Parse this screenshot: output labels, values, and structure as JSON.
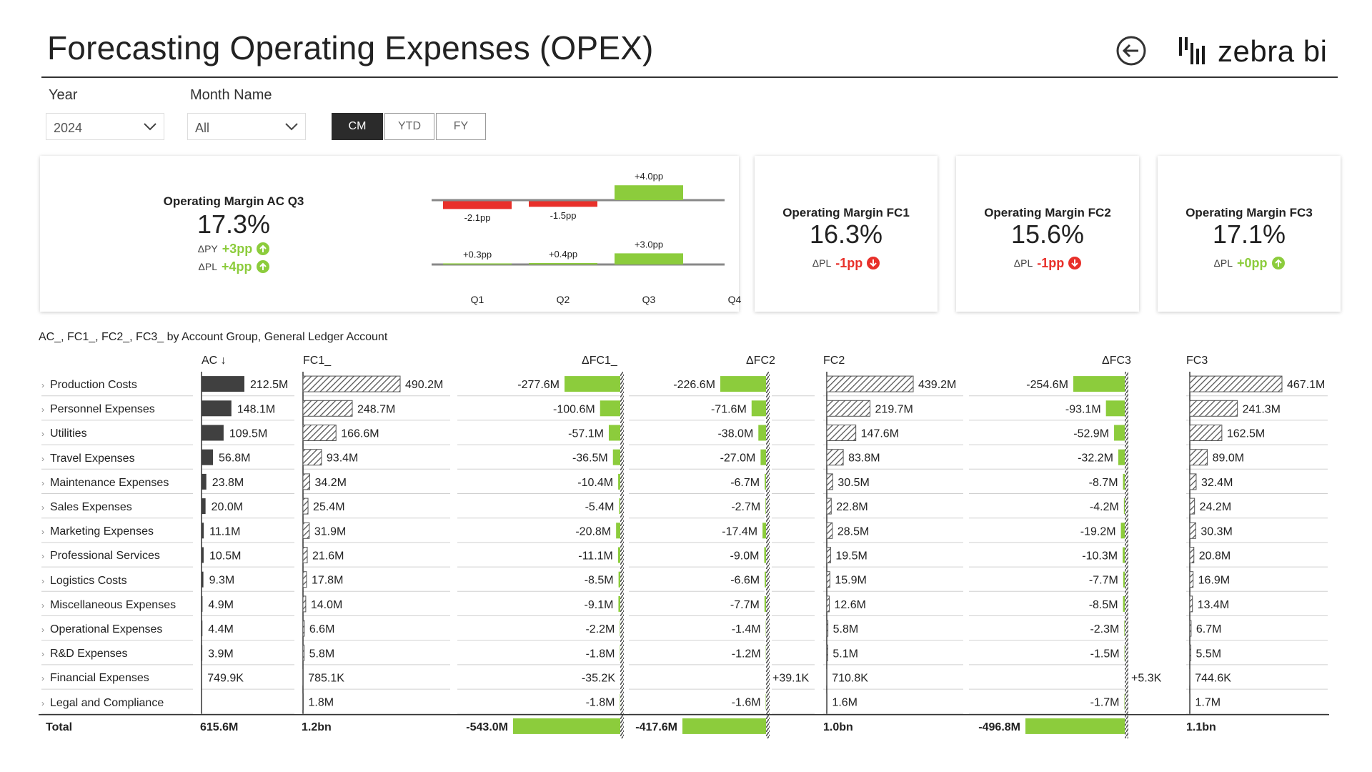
{
  "header": {
    "title": "Forecasting Operating Expenses (OPEX)",
    "logo_text": "zebra bi",
    "back_icon": "back-arrow-icon"
  },
  "filters": {
    "year_label": "Year",
    "year_value": "2024",
    "month_label": "Month Name",
    "month_value": "All",
    "period_buttons": [
      "CM",
      "YTD",
      "FY"
    ],
    "period_active": "CM"
  },
  "kpi_main": {
    "title": "Operating Margin AC Q3",
    "value": "17.3%",
    "delta_py_label": "ΔPY",
    "delta_py_value": "+3pp",
    "delta_pl_label": "ΔPL",
    "delta_pl_value": "+4pp",
    "mini_chart": {
      "quarters": [
        "Q1",
        "Q2",
        "Q3",
        "Q4"
      ],
      "py_deltas": [
        -2.1,
        -1.5,
        4.0,
        null
      ],
      "py_labels": [
        "-2.1pp",
        "-1.5pp",
        "+4.0pp",
        ""
      ],
      "pl_deltas": [
        0.3,
        0.4,
        3.0,
        null
      ],
      "pl_labels": [
        "+0.3pp",
        "+0.4pp",
        "+3.0pp",
        ""
      ]
    }
  },
  "kpi_forecasts": [
    {
      "title": "Operating Margin FC1",
      "value": "16.3%",
      "delta_label": "ΔPL",
      "delta_value": "-1pp",
      "status": "down"
    },
    {
      "title": "Operating Margin FC2",
      "value": "15.6%",
      "delta_label": "ΔPL",
      "delta_value": "-1pp",
      "status": "down"
    },
    {
      "title": "Operating Margin FC3",
      "value": "17.1%",
      "delta_label": "ΔPL",
      "delta_value": "+0pp",
      "status": "up"
    }
  ],
  "table": {
    "caption": "AC_, FC1_, FC2_, FC3_ by Account Group, General Ledger Account",
    "headers": {
      "ac": "AC ↓",
      "fc1": "FC1_",
      "dfc1": "ΔFC1_",
      "dfc2": "ΔFC2",
      "fc2": "FC2",
      "dfc3": "ΔFC3",
      "fc3": "FC3"
    },
    "rows": [
      {
        "label": "Production Costs",
        "ac": 212.5,
        "ac_t": "212.5M",
        "fc1": 490.2,
        "fc1_t": "490.2M",
        "dfc1": -277.6,
        "dfc1_t": "-277.6M",
        "dfc2": -226.6,
        "dfc2_t": "-226.6M",
        "fc2": 439.2,
        "fc2_t": "439.2M",
        "dfc3": -254.6,
        "dfc3_t": "-254.6M",
        "fc3": 467.1,
        "fc3_t": "467.1M"
      },
      {
        "label": "Personnel Expenses",
        "ac": 148.1,
        "ac_t": "148.1M",
        "fc1": 248.7,
        "fc1_t": "248.7M",
        "dfc1": -100.6,
        "dfc1_t": "-100.6M",
        "dfc2": -71.6,
        "dfc2_t": "-71.6M",
        "fc2": 219.7,
        "fc2_t": "219.7M",
        "dfc3": -93.1,
        "dfc3_t": "-93.1M",
        "fc3": 241.3,
        "fc3_t": "241.3M"
      },
      {
        "label": "Utilities",
        "ac": 109.5,
        "ac_t": "109.5M",
        "fc1": 166.6,
        "fc1_t": "166.6M",
        "dfc1": -57.1,
        "dfc1_t": "-57.1M",
        "dfc2": -38.0,
        "dfc2_t": "-38.0M",
        "fc2": 147.6,
        "fc2_t": "147.6M",
        "dfc3": -52.9,
        "dfc3_t": "-52.9M",
        "fc3": 162.5,
        "fc3_t": "162.5M"
      },
      {
        "label": "Travel Expenses",
        "ac": 56.8,
        "ac_t": "56.8M",
        "fc1": 93.4,
        "fc1_t": "93.4M",
        "dfc1": -36.5,
        "dfc1_t": "-36.5M",
        "dfc2": -27.0,
        "dfc2_t": "-27.0M",
        "fc2": 83.8,
        "fc2_t": "83.8M",
        "dfc3": -32.2,
        "dfc3_t": "-32.2M",
        "fc3": 89.0,
        "fc3_t": "89.0M"
      },
      {
        "label": "Maintenance Expenses",
        "ac": 23.8,
        "ac_t": "23.8M",
        "fc1": 34.2,
        "fc1_t": "34.2M",
        "dfc1": -10.4,
        "dfc1_t": "-10.4M",
        "dfc2": -6.7,
        "dfc2_t": "-6.7M",
        "fc2": 30.5,
        "fc2_t": "30.5M",
        "dfc3": -8.7,
        "dfc3_t": "-8.7M",
        "fc3": 32.4,
        "fc3_t": "32.4M"
      },
      {
        "label": "Sales Expenses",
        "ac": 20.0,
        "ac_t": "20.0M",
        "fc1": 25.4,
        "fc1_t": "25.4M",
        "dfc1": -5.4,
        "dfc1_t": "-5.4M",
        "dfc2": -2.7,
        "dfc2_t": "-2.7M",
        "fc2": 22.8,
        "fc2_t": "22.8M",
        "dfc3": -4.2,
        "dfc3_t": "-4.2M",
        "fc3": 24.2,
        "fc3_t": "24.2M"
      },
      {
        "label": "Marketing Expenses",
        "ac": 11.1,
        "ac_t": "11.1M",
        "fc1": 31.9,
        "fc1_t": "31.9M",
        "dfc1": -20.8,
        "dfc1_t": "-20.8M",
        "dfc2": -17.4,
        "dfc2_t": "-17.4M",
        "fc2": 28.5,
        "fc2_t": "28.5M",
        "dfc3": -19.2,
        "dfc3_t": "-19.2M",
        "fc3": 30.3,
        "fc3_t": "30.3M"
      },
      {
        "label": "Professional Services",
        "ac": 10.5,
        "ac_t": "10.5M",
        "fc1": 21.6,
        "fc1_t": "21.6M",
        "dfc1": -11.1,
        "dfc1_t": "-11.1M",
        "dfc2": -9.0,
        "dfc2_t": "-9.0M",
        "fc2": 19.5,
        "fc2_t": "19.5M",
        "dfc3": -10.3,
        "dfc3_t": "-10.3M",
        "fc3": 20.8,
        "fc3_t": "20.8M"
      },
      {
        "label": "Logistics Costs",
        "ac": 9.3,
        "ac_t": "9.3M",
        "fc1": 17.8,
        "fc1_t": "17.8M",
        "dfc1": -8.5,
        "dfc1_t": "-8.5M",
        "dfc2": -6.6,
        "dfc2_t": "-6.6M",
        "fc2": 15.9,
        "fc2_t": "15.9M",
        "dfc3": -7.7,
        "dfc3_t": "-7.7M",
        "fc3": 16.9,
        "fc3_t": "16.9M"
      },
      {
        "label": "Miscellaneous Expenses",
        "ac": 4.9,
        "ac_t": "4.9M",
        "fc1": 14.0,
        "fc1_t": "14.0M",
        "dfc1": -9.1,
        "dfc1_t": "-9.1M",
        "dfc2": -7.7,
        "dfc2_t": "-7.7M",
        "fc2": 12.6,
        "fc2_t": "12.6M",
        "dfc3": -8.5,
        "dfc3_t": "-8.5M",
        "fc3": 13.4,
        "fc3_t": "13.4M"
      },
      {
        "label": "Operational Expenses",
        "ac": 4.4,
        "ac_t": "4.4M",
        "fc1": 6.6,
        "fc1_t": "6.6M",
        "dfc1": -2.2,
        "dfc1_t": "-2.2M",
        "dfc2": -1.4,
        "dfc2_t": "-1.4M",
        "fc2": 5.8,
        "fc2_t": "5.8M",
        "dfc3": -2.3,
        "dfc3_t": "-2.3M",
        "fc3": 6.7,
        "fc3_t": "6.7M"
      },
      {
        "label": "R&D Expenses",
        "ac": 3.9,
        "ac_t": "3.9M",
        "fc1": 5.8,
        "fc1_t": "5.8M",
        "dfc1": -1.8,
        "dfc1_t": "-1.8M",
        "dfc2": -1.2,
        "dfc2_t": "-1.2M",
        "fc2": 5.1,
        "fc2_t": "5.1M",
        "dfc3": -1.5,
        "dfc3_t": "-1.5M",
        "fc3": 5.5,
        "fc3_t": "5.5M"
      },
      {
        "label": "Financial Expenses",
        "ac": 0.7499,
        "ac_t": "749.9K",
        "fc1": 0.7851,
        "fc1_t": "785.1K",
        "dfc1": -0.0352,
        "dfc1_t": "-35.2K",
        "dfc2": 0.0391,
        "dfc2_t": "+39.1K",
        "fc2": 0.7108,
        "fc2_t": "710.8K",
        "dfc3": 0.0053,
        "dfc3_t": "+5.3K",
        "fc3": 0.7446,
        "fc3_t": "744.6K"
      },
      {
        "label": "Legal and Compliance",
        "ac": 0,
        "ac_t": "",
        "fc1": 1.8,
        "fc1_t": "1.8M",
        "dfc1": -1.8,
        "dfc1_t": "-1.8M",
        "dfc2": -1.6,
        "dfc2_t": "-1.6M",
        "fc2": 1.6,
        "fc2_t": "1.6M",
        "dfc3": -1.7,
        "dfc3_t": "-1.7M",
        "fc3": 1.7,
        "fc3_t": "1.7M"
      }
    ],
    "total": {
      "label": "Total",
      "ac_t": "615.6M",
      "fc1_t": "1.2bn",
      "dfc1": -543.0,
      "dfc1_t": "-543.0M",
      "dfc2": -417.6,
      "dfc2_t": "-417.6M",
      "fc2_t": "1.0bn",
      "dfc3": -496.8,
      "dfc3_t": "-496.8M",
      "fc3_t": "1.1bn"
    }
  },
  "colors": {
    "ac_bar": "#404040",
    "positive": "#8ccc3c",
    "negative": "#e8302a",
    "hatch": "#555555"
  }
}
